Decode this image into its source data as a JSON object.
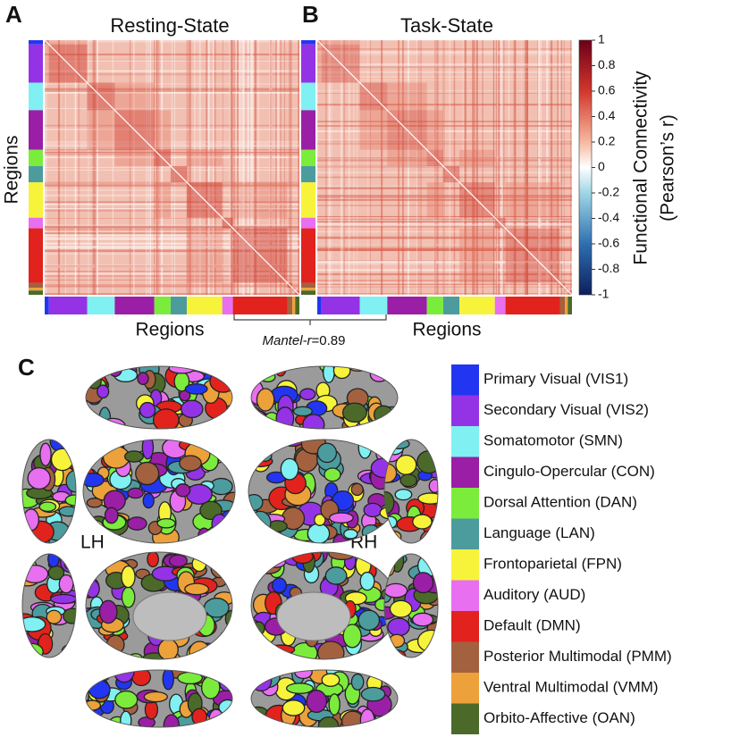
{
  "panels": [
    {
      "letter": "A",
      "title": "Resting-State",
      "x_label": "Regions",
      "y_label": "Regions"
    },
    {
      "letter": "B",
      "title": "Task-State",
      "x_label": "Regions"
    }
  ],
  "colorbar": {
    "label_lines": [
      "Functional Connectivity",
      "(Pearson’s r)"
    ],
    "lim": [
      -1,
      1
    ],
    "ticks": [
      1,
      0.8,
      0.6,
      0.4,
      0.2,
      0,
      -0.2,
      -0.4,
      -0.6,
      -0.8,
      -1
    ]
  },
  "mantel": {
    "label": "Mantel-r",
    "sep": "=",
    "value": 0.89
  },
  "panel_c": {
    "letter": "C",
    "hemispheres": [
      "LH",
      "RH"
    ]
  },
  "networks": [
    {
      "name": "Primary Visual (VIS1)",
      "color": "#2236f2",
      "regions": 6
    },
    {
      "name": "Secondary Visual (VIS2)",
      "color": "#9433e6",
      "regions": 54
    },
    {
      "name": "Somatomotor (SMN)",
      "color": "#80f0f2",
      "regions": 39
    },
    {
      "name": "Cingulo-Opercular (CON)",
      "color": "#9a1fa6",
      "regions": 56
    },
    {
      "name": "Dorsal Attention (DAN)",
      "color": "#7cec3c",
      "regions": 23
    },
    {
      "name": "Language (LAN)",
      "color": "#4c9c9e",
      "regions": 23
    },
    {
      "name": "Frontoparietal (FPN)",
      "color": "#f7f33a",
      "regions": 50
    },
    {
      "name": "Auditory (AUD)",
      "color": "#e86ff0",
      "regions": 15
    },
    {
      "name": "Default (DMN)",
      "color": "#e2221d",
      "regions": 77
    },
    {
      "name": "Posterior Multimodal (PMM)",
      "color": "#a4613f",
      "regions": 7
    },
    {
      "name": "Ventral Multimodal (VMM)",
      "color": "#eca13a",
      "regions": 4
    },
    {
      "name": "Orbito-Affective (OAN)",
      "color": "#4b6a2a",
      "regions": 6
    }
  ]
}
